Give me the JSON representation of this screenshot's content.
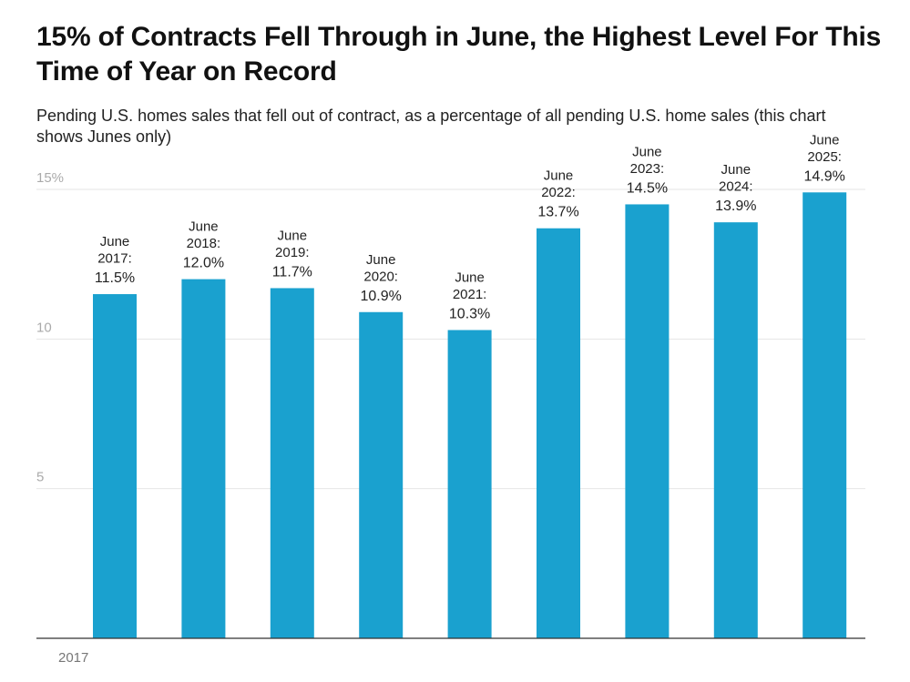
{
  "title": "15% of Contracts Fell Through in June, the Highest Level For This Time of Year on Record",
  "subtitle": "Pending U.S. homes sales that fell out of contract, as a percentage of all pending U.S. home sales (this chart shows Junes only)",
  "colors": {
    "bar": "#1aa1cf",
    "grid": "#e6e6e6",
    "axis": "#333333",
    "tick_text": "#aaaaaa",
    "label_text": "#222222"
  },
  "chart_data": {
    "type": "bar",
    "categories": [
      "2017",
      "2018",
      "2019",
      "2020",
      "2021",
      "2022",
      "2023",
      "2024",
      "2025"
    ],
    "values": [
      11.5,
      12.0,
      11.7,
      10.9,
      10.3,
      13.7,
      14.5,
      13.9,
      14.9
    ],
    "bar_labels": [
      [
        "June",
        "2017:",
        "11.5%"
      ],
      [
        "June",
        "2018:",
        "12.0%"
      ],
      [
        "June",
        "2019:",
        "11.7%"
      ],
      [
        "June",
        "2020:",
        "10.9%"
      ],
      [
        "June",
        "2021:",
        "10.3%"
      ],
      [
        "June",
        "2022:",
        "13.7%"
      ],
      [
        "June",
        "2023:",
        "14.5%"
      ],
      [
        "June",
        "2024:",
        "13.9%"
      ],
      [
        "June",
        "2025:",
        "14.9%"
      ]
    ],
    "y_ticks": [
      {
        "value": 15,
        "label": "15%"
      },
      {
        "value": 10,
        "label": "10"
      },
      {
        "value": 5,
        "label": "5"
      }
    ],
    "x_tick_labels": [
      "2017"
    ],
    "ylim": [
      0,
      15
    ],
    "grid": true,
    "legend": "none"
  }
}
